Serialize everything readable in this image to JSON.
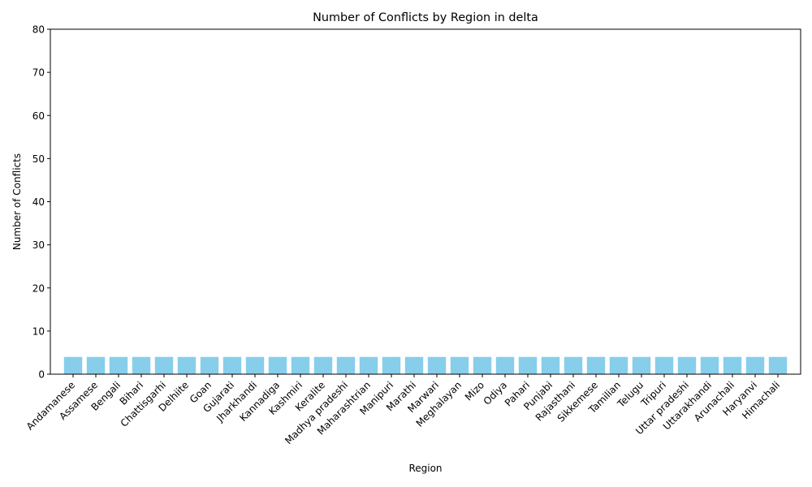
{
  "chart_data": {
    "type": "bar",
    "title": "Number of Conflicts by Region in delta",
    "xlabel": "Region",
    "ylabel": "Number of Conflicts",
    "ylim": [
      0,
      80
    ],
    "yticks": [
      0,
      10,
      20,
      30,
      40,
      50,
      60,
      70,
      80
    ],
    "grid": false,
    "bar_color": "#87CEEB",
    "categories": [
      "Andamanese",
      "Assamese",
      "Bengali",
      "Bihari",
      "Chattisgarhi",
      "Delhiite",
      "Goan",
      "Gujarati",
      "Jharkhandi",
      "Kannadiga",
      "Kashmiri",
      "Keralite",
      "Madhya pradeshi",
      "Maharashtrian",
      "Manipuri",
      "Marathi",
      "Marwari",
      "Meghalayan",
      "Mizo",
      "Odiya",
      "Pahari",
      "Punjabi",
      "Rajasthani",
      "Sikkemese",
      "Tamilian",
      "Telugu",
      "Tripuri",
      "Uttar pradeshi",
      "Uttarakhandi",
      "Arunachali",
      "Haryanvi",
      "Himachali"
    ],
    "values": [
      4,
      4,
      4,
      4,
      4,
      4,
      4,
      4,
      4,
      4,
      4,
      4,
      4,
      4,
      4,
      4,
      4,
      4,
      4,
      4,
      4,
      4,
      4,
      4,
      4,
      4,
      4,
      4,
      4,
      4,
      4,
      4
    ]
  }
}
